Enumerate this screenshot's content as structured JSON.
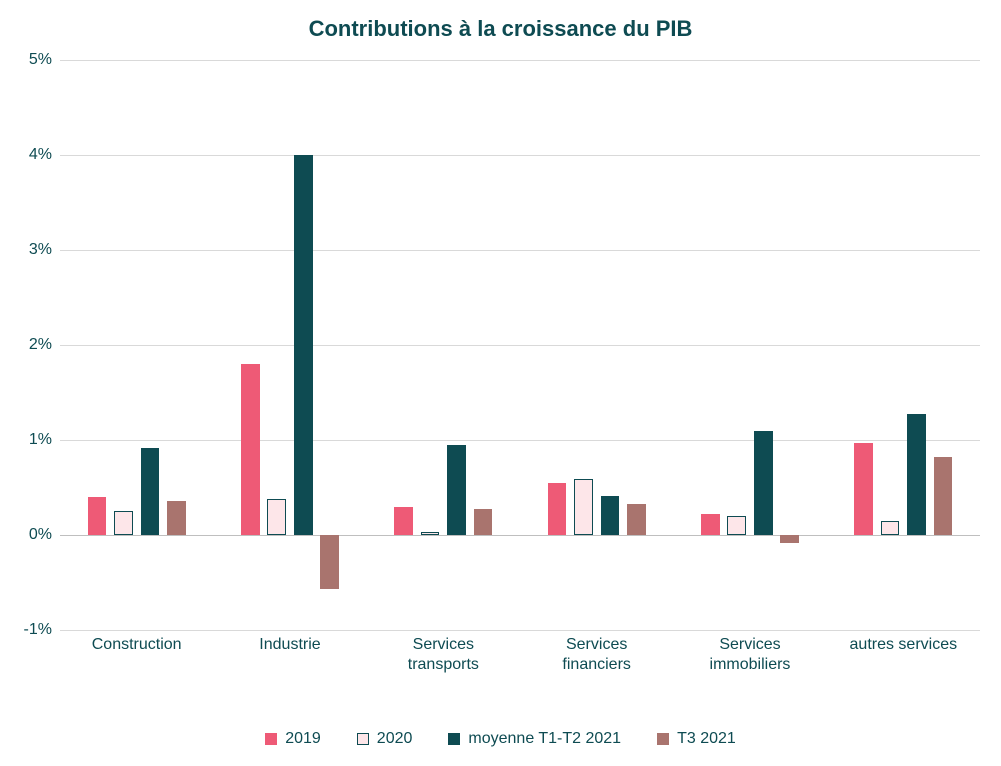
{
  "chart": {
    "type": "bar",
    "title": "Contributions à la croissance du PIB",
    "title_color": "#0e4b52",
    "title_fontsize": 22,
    "title_fontweight": "bold",
    "background_color": "#ffffff",
    "grid_color": "#d9d9d9",
    "zero_line_color": "#bfbfbf",
    "axis_label_color": "#0e4b52",
    "axis_label_fontsize": 16,
    "ylim": [
      -1,
      5
    ],
    "ytick_step": 1,
    "ytick_format_suffix": "%",
    "categories": [
      "Construction",
      "Industrie",
      "Services\ntransports",
      "Services\nfinanciers",
      "Services\nimmobiliers",
      "autres services"
    ],
    "series": [
      {
        "label": "2019",
        "fill": "#ee5a76",
        "border": "#ee5a76",
        "border_width": 0,
        "values": [
          0.4,
          1.8,
          0.3,
          0.55,
          0.22,
          0.97
        ]
      },
      {
        "label": "2020",
        "fill": "#fde6e9",
        "border": "#0e4b52",
        "border_width": 1,
        "values": [
          0.25,
          0.38,
          0.03,
          0.59,
          0.2,
          0.15
        ]
      },
      {
        "label": "moyenne T1-T2 2021",
        "fill": "#0e4b52",
        "border": "#0e4b52",
        "border_width": 0,
        "values": [
          0.92,
          4.0,
          0.95,
          0.41,
          1.09,
          1.27
        ]
      },
      {
        "label": "T3 2021",
        "fill": "#a9746e",
        "border": "#a9746e",
        "border_width": 0,
        "values": [
          0.36,
          -0.57,
          0.27,
          0.33,
          -0.08,
          0.82
        ]
      }
    ],
    "bar_gap_ratio": 0.08,
    "group_padding_ratio": 0.18,
    "legend_text_color": "#0e4b52",
    "legend_fontsize": 16
  }
}
